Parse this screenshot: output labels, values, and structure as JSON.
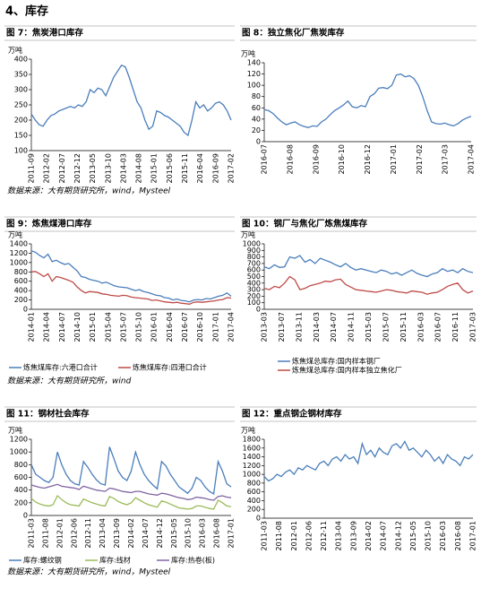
{
  "heading": "4、库存",
  "chart_data": [
    {
      "type": "line",
      "title": "图 7：焦炭港口库存",
      "unit": "万吨",
      "source": "数据来源：大有期货研究所，wind，Mysteel",
      "ylim": [
        100,
        400
      ],
      "yticks": [
        100,
        150,
        200,
        250,
        300,
        350,
        400
      ],
      "xticks": [
        "2011-09",
        "2012-02",
        "2012-07",
        "2012-12",
        "2013-05",
        "2013-10",
        "2014-03",
        "2014-08",
        "2015-01",
        "2015-06",
        "2015-11",
        "2016-04",
        "2016-09",
        "2017-02"
      ],
      "series": [
        {
          "color": "#4a7ebb",
          "values": [
            220,
            200,
            185,
            180,
            200,
            215,
            220,
            230,
            235,
            240,
            245,
            240,
            250,
            245,
            260,
            300,
            290,
            305,
            300,
            280,
            310,
            340,
            360,
            380,
            375,
            340,
            300,
            260,
            240,
            200,
            170,
            180,
            230,
            225,
            215,
            210,
            200,
            190,
            180,
            160,
            150,
            200,
            260,
            240,
            250,
            230,
            240,
            255,
            260,
            250,
            230,
            200
          ]
        }
      ]
    },
    {
      "type": "line",
      "title": "图 8：独立焦化厂焦炭库存",
      "unit": "万吨",
      "ylim": [
        0,
        140
      ],
      "yticks": [
        0,
        20,
        40,
        60,
        80,
        100,
        120,
        140
      ],
      "xticks": [
        "2016-07",
        "2016-08",
        "2016-09",
        "2016-10",
        "2016-12",
        "2017-01",
        "2017-02",
        "2017-03",
        "2017-04"
      ],
      "series": [
        {
          "color": "#4a7ebb",
          "values": [
            57,
            55,
            50,
            42,
            35,
            30,
            33,
            35,
            30,
            27,
            25,
            28,
            27,
            35,
            40,
            48,
            55,
            60,
            65,
            72,
            62,
            60,
            64,
            62,
            80,
            85,
            95,
            96,
            94,
            100,
            118,
            120,
            115,
            117,
            112,
            100,
            80,
            55,
            35,
            32,
            31,
            33,
            30,
            28,
            32,
            38,
            42,
            45
          ]
        }
      ]
    },
    {
      "type": "line",
      "title": "图 9：炼焦煤港口库存",
      "unit": "万吨",
      "source": "数据来源：大有期货研究所，wind",
      "ylim": [
        0,
        1400
      ],
      "yticks": [
        0,
        200,
        400,
        600,
        800,
        1000,
        1200,
        1400
      ],
      "xticks": [
        "2014-01",
        "2014-04",
        "2014-07",
        "2014-10",
        "2015-01",
        "2015-04",
        "2015-07",
        "2015-10",
        "2016-01",
        "2016-04",
        "2016-07",
        "2016-10",
        "2017-01",
        "2017-04"
      ],
      "series": [
        {
          "name": "炼焦煤库存:六港口合计",
          "color": "#4a7ebb",
          "values": [
            1250,
            1220,
            1150,
            1100,
            1180,
            1020,
            1050,
            1000,
            960,
            980,
            900,
            820,
            700,
            680,
            640,
            620,
            600,
            560,
            580,
            540,
            500,
            480,
            470,
            460,
            430,
            400,
            420,
            380,
            360,
            330,
            300,
            290,
            250,
            240,
            200,
            220,
            190,
            180,
            160,
            200,
            210,
            200,
            230,
            220,
            250,
            280,
            300,
            350,
            280
          ]
        },
        {
          "name": "炼焦煤库存:四港口合计",
          "color": "#be4b48",
          "values": [
            800,
            810,
            760,
            700,
            760,
            600,
            700,
            680,
            650,
            620,
            580,
            480,
            400,
            350,
            380,
            370,
            360,
            330,
            320,
            300,
            290,
            280,
            300,
            290,
            260,
            250,
            240,
            230,
            220,
            190,
            200,
            180,
            160,
            150,
            140,
            150,
            130,
            120,
            110,
            150,
            160,
            150,
            160,
            170,
            180,
            200,
            210,
            250,
            240
          ]
        }
      ]
    },
    {
      "type": "line",
      "title": "图 10：钢厂与焦化厂炼焦煤库存",
      "unit": "万吨",
      "ylim": [
        0,
        1000
      ],
      "yticks": [
        0,
        100,
        200,
        300,
        400,
        500,
        600,
        700,
        800,
        900,
        1000
      ],
      "xticks": [
        "2013-03",
        "2013-07",
        "2013-11",
        "2014-03",
        "2014-07",
        "2014-11",
        "2015-03",
        "2015-07",
        "2015-11",
        "2016-03",
        "2016-07",
        "2016-11",
        "2017-03"
      ],
      "series": [
        {
          "name": "炼焦煤总库存:国内样本钢厂",
          "color": "#4a7ebb",
          "values": [
            650,
            620,
            680,
            640,
            650,
            800,
            780,
            820,
            720,
            760,
            700,
            780,
            750,
            720,
            680,
            650,
            700,
            640,
            600,
            620,
            600,
            580,
            560,
            600,
            580,
            540,
            560,
            520,
            560,
            600,
            550,
            520,
            500,
            540,
            560,
            620,
            580,
            600,
            560,
            620,
            580,
            560
          ]
        },
        {
          "name": "炼焦煤总库存:国内样本独立焦化厂",
          "color": "#be4b48",
          "values": [
            320,
            300,
            350,
            330,
            400,
            500,
            450,
            300,
            320,
            360,
            380,
            400,
            430,
            420,
            450,
            460,
            380,
            340,
            300,
            290,
            280,
            270,
            260,
            280,
            300,
            290,
            270,
            260,
            250,
            280,
            270,
            260,
            230,
            250,
            260,
            300,
            350,
            380,
            400,
            300,
            250,
            280
          ]
        }
      ]
    },
    {
      "type": "line",
      "title": "图 11：钢材社会库存",
      "unit": "万吨",
      "source": "数据来源：大有期货研究所，wind，Mysteel",
      "ylim": [
        0,
        1200
      ],
      "yticks": [
        0,
        200,
        400,
        600,
        800,
        1000,
        1200
      ],
      "xticks": [
        "2011-03",
        "2011-08",
        "2012-01",
        "2012-06",
        "2012-11",
        "2013-04",
        "2013-09",
        "2014-02",
        "2014-07",
        "2014-12",
        "2015-05",
        "2015-10",
        "2016-03",
        "2016-08",
        "2017-01"
      ],
      "series": [
        {
          "name": "库存:螺纹钢",
          "color": "#4a7ebb",
          "values": [
            800,
            650,
            600,
            550,
            520,
            600,
            1000,
            800,
            650,
            550,
            500,
            480,
            850,
            760,
            650,
            560,
            500,
            480,
            1080,
            900,
            700,
            600,
            550,
            700,
            1000,
            800,
            650,
            550,
            480,
            420,
            850,
            780,
            650,
            550,
            450,
            400,
            350,
            430,
            600,
            550,
            450,
            380,
            340,
            850,
            700,
            500,
            450
          ]
        },
        {
          "name": "库存:线材",
          "color": "#9bbb59",
          "values": [
            270,
            210,
            180,
            160,
            150,
            170,
            310,
            250,
            200,
            170,
            160,
            150,
            260,
            230,
            200,
            180,
            160,
            150,
            300,
            270,
            220,
            190,
            170,
            200,
            280,
            240,
            200,
            170,
            150,
            130,
            230,
            210,
            180,
            150,
            120,
            110,
            100,
            110,
            150,
            150,
            130,
            110,
            100,
            240,
            200,
            150,
            140
          ]
        },
        {
          "name": "库存:热卷(板)",
          "color": "#8064a2",
          "values": [
            480,
            460,
            440,
            430,
            450,
            470,
            490,
            460,
            450,
            440,
            430,
            410,
            460,
            440,
            420,
            400,
            390,
            380,
            430,
            420,
            400,
            380,
            370,
            360,
            380,
            380,
            360,
            340,
            330,
            320,
            350,
            340,
            320,
            300,
            280,
            270,
            250,
            260,
            290,
            280,
            270,
            250,
            240,
            300,
            310,
            290,
            280
          ]
        }
      ]
    },
    {
      "type": "line",
      "title": "图 12：重点钢企钢材库存",
      "unit": "万吨",
      "ylim": [
        0,
        1800
      ],
      "yticks": [
        0,
        200,
        400,
        600,
        800,
        1000,
        1200,
        1400,
        1600,
        1800
      ],
      "xticks": [
        "2011-03",
        "2011-08",
        "2012-01",
        "2012-06",
        "2012-11",
        "2013-04",
        "2013-09",
        "2014-02",
        "2014-07",
        "2014-12",
        "2015-05",
        "2015-10",
        "2016-03",
        "2016-08",
        "2017-01"
      ],
      "series": [
        {
          "color": "#4a7ebb",
          "values": [
            950,
            850,
            900,
            1000,
            950,
            1050,
            1100,
            1000,
            1150,
            1100,
            1200,
            1150,
            1100,
            1250,
            1300,
            1200,
            1350,
            1400,
            1300,
            1450,
            1350,
            1400,
            1250,
            1700,
            1450,
            1550,
            1400,
            1600,
            1500,
            1450,
            1650,
            1700,
            1600,
            1750,
            1550,
            1600,
            1500,
            1400,
            1550,
            1450,
            1300,
            1400,
            1250,
            1450,
            1350,
            1300,
            1200,
            1400,
            1350,
            1450
          ]
        }
      ]
    }
  ]
}
